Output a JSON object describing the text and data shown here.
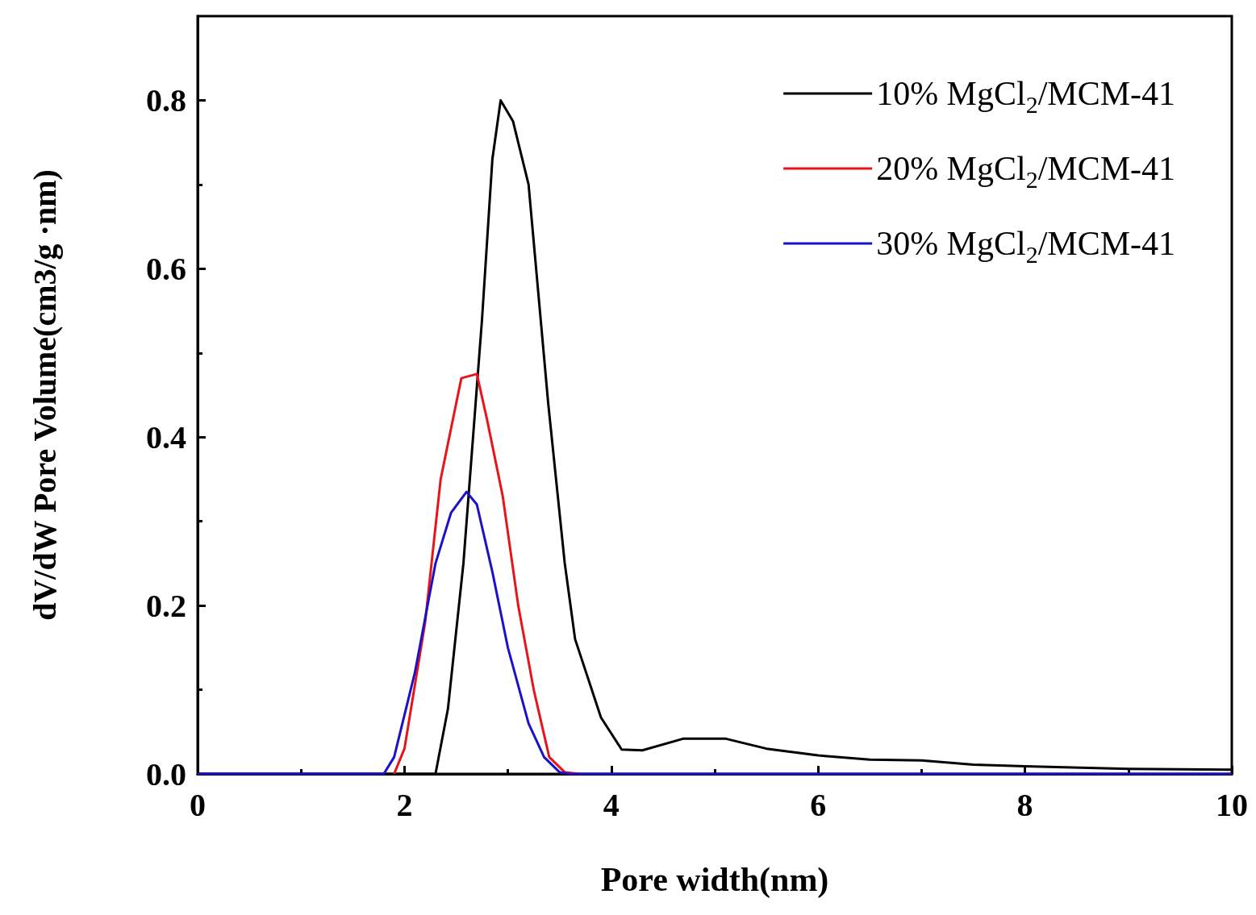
{
  "chart_data": {
    "type": "line",
    "xlabel": "Pore width(nm)",
    "ylabel": "dV/dW Pore Volume(cm3/g ·nm)",
    "xlim": [
      0,
      10
    ],
    "xticks": [
      0,
      2,
      4,
      6,
      8,
      10
    ],
    "ylim": [
      0,
      0.9
    ],
    "yticks": [
      {
        "value": 0,
        "label": "0.0"
      },
      0.2,
      0.4,
      0.6,
      0.8
    ],
    "grid": false,
    "legend": "top right",
    "marker": "none",
    "line_style": "solid",
    "series": [
      {
        "name": "10% MgCl$_{2}$/MCM-41",
        "color": "#000000",
        "x": [
          0,
          2.3,
          2.42,
          2.57,
          2.75,
          2.85,
          2.93,
          3.05,
          3.2,
          3.39,
          3.55,
          3.65,
          3.9,
          4.1,
          4.3,
          4.7,
          5.1,
          5.5,
          6,
          6.5,
          7,
          7.5,
          8,
          9,
          10
        ],
        "values": [
          0,
          0,
          0.077,
          0.25,
          0.54,
          0.73,
          0.8,
          0.775,
          0.7,
          0.44,
          0.25,
          0.16,
          0.067,
          0.029,
          0.028,
          0.042,
          0.042,
          0.03,
          0.022,
          0.017,
          0.016,
          0.011,
          0.009,
          0.006,
          0.005
        ]
      },
      {
        "name": "20% MgCl$_{2}$/MCM-41",
        "color": "#e8141a",
        "x": [
          1.9,
          2.0,
          2.2,
          2.35,
          2.4,
          2.55,
          2.7,
          2.8,
          2.95,
          3.1,
          3.25,
          3.4,
          3.55,
          3.7
        ],
        "values": [
          0,
          0.03,
          0.18,
          0.35,
          0.38,
          0.47,
          0.475,
          0.42,
          0.33,
          0.2,
          0.1,
          0.02,
          0.002,
          0
        ]
      },
      {
        "name": "30% MgCl$_{2}$/MCM-41",
        "color": "#1a12c8",
        "x": [
          0,
          1.8,
          1.9,
          2.1,
          2.3,
          2.45,
          2.6,
          2.7,
          2.85,
          3.0,
          3.2,
          3.35,
          3.5,
          3.6,
          10
        ],
        "values": [
          0,
          0,
          0.02,
          0.12,
          0.25,
          0.31,
          0.335,
          0.32,
          0.24,
          0.15,
          0.06,
          0.02,
          0.002,
          0,
          0
        ]
      }
    ]
  }
}
